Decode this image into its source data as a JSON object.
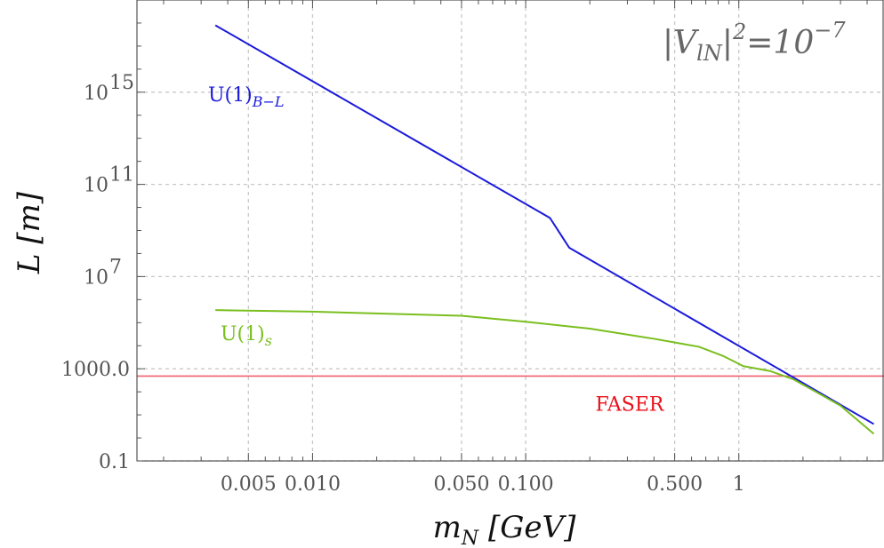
{
  "chart_data": {
    "type": "line",
    "xlabel": "m_N [GeV]",
    "ylabel": "L [m]",
    "x_scale": "log",
    "y_scale": "log",
    "xlim": [
      0.0015,
      4.8
    ],
    "ylim": [
      0.1,
      1e+19
    ],
    "grid": true,
    "x_ticks": [
      {
        "value": 0.005,
        "label": "0.005"
      },
      {
        "value": 0.01,
        "label": "0.010"
      },
      {
        "value": 0.05,
        "label": "0.050"
      },
      {
        "value": 0.1,
        "label": "0.100"
      },
      {
        "value": 0.5,
        "label": "0.500"
      },
      {
        "value": 1,
        "label": "1"
      }
    ],
    "y_ticks": [
      {
        "value": 0.1,
        "label": "0.1",
        "exp": ""
      },
      {
        "value": 1000,
        "label": "1000.0",
        "exp": ""
      },
      {
        "value": 10000000.0,
        "label": "10",
        "exp": "7"
      },
      {
        "value": 100000000000.0,
        "label": "10",
        "exp": "11"
      },
      {
        "value": 1000000000000000.0,
        "label": "10",
        "exp": "15"
      }
    ],
    "series": [
      {
        "name": "U(1)_{B-L}",
        "label_main": "U(1)",
        "label_sub": "B−L",
        "color": "#1a1adb",
        "x": [
          0.0035,
          0.13,
          0.16,
          4.3
        ],
        "y": [
          8e+17,
          3500000000.0,
          180000000.0,
          4
        ]
      },
      {
        "name": "U(1)_s",
        "label_main": "U(1)",
        "label_sub": "s",
        "color": "#7abf1e",
        "x": [
          0.0035,
          0.01,
          0.05,
          0.1,
          0.2,
          0.4,
          0.65,
          0.85,
          1.05,
          1.4,
          1.8,
          2.3,
          3.0,
          4.3
        ],
        "y": [
          350000,
          300000,
          200000,
          110000,
          55000,
          20000,
          9000,
          3500,
          1300,
          800,
          350,
          100,
          25,
          1.5
        ]
      }
    ],
    "reference_line": {
      "label": "FASER",
      "y": 480,
      "color": "#f06070",
      "label_color": "#e8101a"
    },
    "annotation": {
      "text": "|V_lN|^2=10^-7",
      "base": "|V",
      "sub": "lN",
      "bar": "|",
      "sup": "2",
      "eq": "=10",
      "exp": "−7"
    }
  }
}
